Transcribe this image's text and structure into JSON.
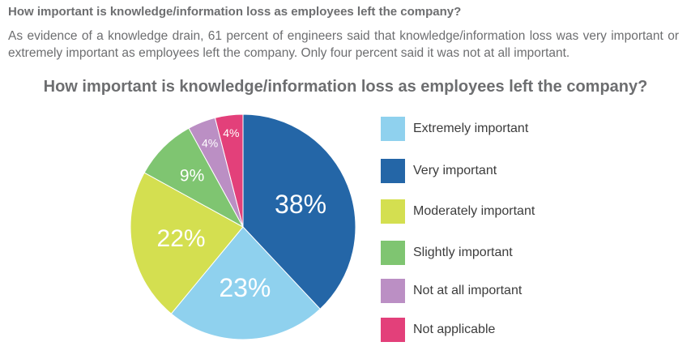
{
  "header": {
    "heading": "How important is knowledge/information loss as employees left the company?",
    "description": "As evidence of a knowledge drain, 61 percent of engineers said that knowledge/information loss was very important or extremely important as employees left the company. Only four percent said it was not at all important."
  },
  "chart_data": {
    "type": "pie",
    "title": "How important is knowledge/information loss as employees left the company?",
    "categories": [
      "Extremely important",
      "Very important",
      "Moderately important",
      "Slightly important",
      "Not at all important",
      "Not applicable"
    ],
    "values": [
      23,
      38,
      22,
      9,
      4,
      4
    ],
    "labels": [
      "23%",
      "38%",
      "22%",
      "9%",
      "4%",
      "4%"
    ],
    "colors": [
      "#8fd1ee",
      "#2466a7",
      "#d4df50",
      "#7fc571",
      "#bb8fc4",
      "#e3407a"
    ],
    "slice_order": [
      1,
      0,
      2,
      3,
      4,
      5
    ],
    "legend_order": [
      0,
      1,
      2,
      3,
      4,
      5
    ],
    "legend_position": "right"
  }
}
